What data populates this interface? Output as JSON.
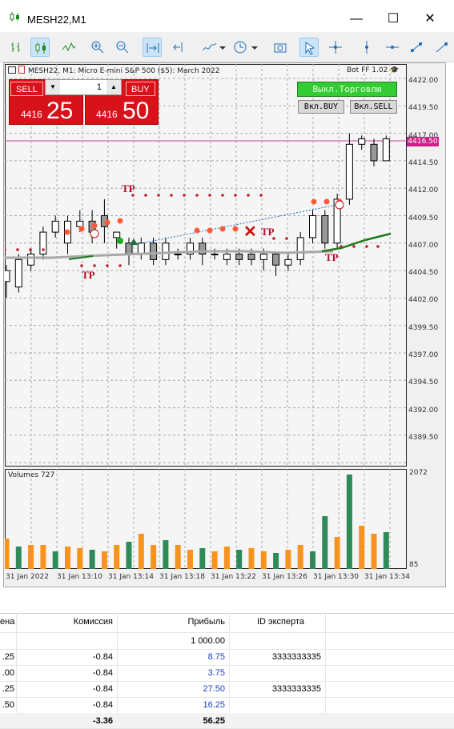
{
  "window": {
    "title": "MESH22,M1",
    "min": "—",
    "max": "☐",
    "close": "✕"
  },
  "toolbar": {
    "icons": [
      "bar-chart-icon",
      "candlestick-icon",
      "line-chart-icon",
      "zoom-in-icon",
      "zoom-out-icon",
      "autoscroll-icon",
      "chart-shift-icon",
      "indicators-icon",
      "periods-icon",
      "screenshot-icon",
      "cursor-icon",
      "crosshair-icon",
      "vertical-line-icon",
      "horizontal-line-icon",
      "trendline-icon",
      "more-icon"
    ]
  },
  "chart": {
    "symbol_line": "MESH22, M1:  Micro E-mini S&P 500 ($5): March 2022",
    "bot": "Bot FF 1.02",
    "price_axis": [
      "4422.00",
      "4419.50",
      "4417.00",
      "4414.50",
      "4412.00",
      "4409.50",
      "4407.00",
      "4404.50",
      "4402.00",
      "4399.50",
      "4397.00",
      "4394.50",
      "4392.00",
      "4389.50"
    ],
    "current_price": "4416.50",
    "time_axis": [
      "31 Jan 2022",
      "31 Jan 13:10",
      "31 Jan 13:14",
      "31 Jan 13:18",
      "31 Jan 13:22",
      "31 Jan 13:26",
      "31 Jan 13:30",
      "31 Jan 13:34"
    ],
    "tp_label": "TP",
    "colors": {
      "bull_green": "#1e7a1e",
      "buy_dots": "#ff5a3c",
      "tp_dots": "#c0202c",
      "ma_line": "#a8a8a8"
    }
  },
  "trade_panel": {
    "sell_label": "SELL",
    "buy_label": "BUY",
    "lot": "1",
    "sell_small": "4416",
    "sell_big": "25",
    "buy_small": "4416",
    "buy_big": "50"
  },
  "bot_buttons": {
    "off_label": "Выкл.Торговлю",
    "buy_label": "Вкл.BUY",
    "sell_label": "Вкл.SELL"
  },
  "volumes": {
    "label": "Volumes 727",
    "max": "2072",
    "min": "85"
  },
  "table": {
    "headers": [
      "ена",
      "Комиссия",
      "Прибыль",
      "ID эксперта"
    ],
    "rows": [
      {
        "c0": "",
        "c1": "",
        "c2": "1 000.00",
        "c3": ""
      },
      {
        "c0": ".25",
        "c1": "-0.84",
        "c2": "8.75",
        "c3": "3333333335"
      },
      {
        "c0": ".00",
        "c1": "-0.84",
        "c2": "3.75",
        "c3": ""
      },
      {
        "c0": ".25",
        "c1": "-0.84",
        "c2": "27.50",
        "c3": "3333333335"
      },
      {
        "c0": ".50",
        "c1": "-0.84",
        "c2": "16.25",
        "c3": ""
      }
    ],
    "totals": {
      "c1": "-3.36",
      "c2": "56.25"
    }
  }
}
